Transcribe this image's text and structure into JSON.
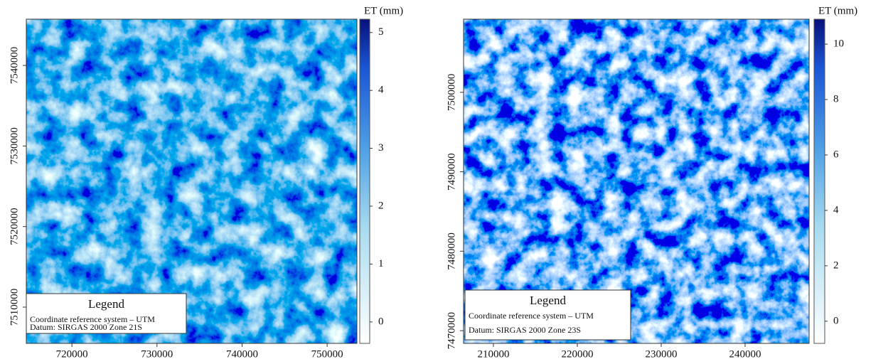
{
  "maps": [
    {
      "xlim": [
        714640,
        753500
      ],
      "ylim": [
        7505500,
        7545740
      ],
      "xticks": [
        720000,
        730000,
        740000,
        750000
      ],
      "yticks": [
        7510000,
        7520000,
        7530000,
        7540000
      ],
      "colorbar": {
        "title": "ET (mm)",
        "lim": [
          -0.37,
          5.23
        ],
        "ticks": [
          0,
          1,
          2,
          3,
          4,
          5
        ]
      },
      "legend": {
        "title": "Legend",
        "lines": [
          "Coordinate reference system – UTM",
          "Datum: SIRGAS 2000 Zone 21S"
        ]
      }
    },
    {
      "xlim": [
        206440,
        247630
      ],
      "ylim": [
        7468400,
        7509200
      ],
      "xticks": [
        210000,
        220000,
        230000,
        240000
      ],
      "yticks": [
        7470000,
        7480000,
        7490000,
        7500000
      ],
      "colorbar": {
        "title": "ET (mm)",
        "lim": [
          -0.8,
          10.9
        ],
        "ticks": [
          0,
          2,
          4,
          6,
          8,
          10
        ]
      },
      "legend": {
        "title": "Legend",
        "lines": [
          "Coordinate reference system – UTM",
          "Datum: SIRGAS 2000 Zone 23S"
        ]
      }
    }
  ]
}
